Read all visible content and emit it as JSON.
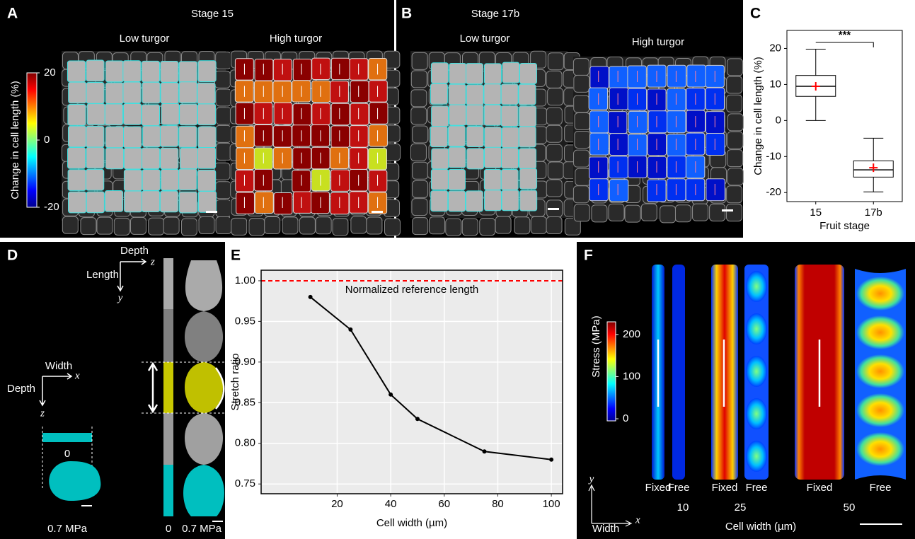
{
  "panels": {
    "A": {
      "label": "A",
      "title": "Stage 15",
      "subtitles": [
        "Low turgor",
        "High turgor"
      ],
      "colorbar": {
        "label": "Change in cell length (%)",
        "lim": [
          -20,
          20
        ],
        "ticks": [
          20,
          0,
          -20
        ]
      }
    },
    "B": {
      "label": "B",
      "title": "Stage 17b",
      "subtitles": [
        "Low turgor",
        "High turgor"
      ]
    },
    "C": {
      "label": "C"
    },
    "D": {
      "label": "D",
      "axes_top": [
        "Depth",
        "z",
        "Length",
        "y"
      ],
      "axes_left": [
        "Width",
        "x",
        "Depth",
        "z"
      ],
      "pressure_labels": [
        "0",
        "0.7 MPa",
        "0",
        "0.7 MPa"
      ]
    },
    "E": {
      "label": "E"
    },
    "F": {
      "label": "F",
      "colorbar": {
        "label": "Stress (MPa)",
        "lim": [
          -5,
          230
        ],
        "ticks": [
          200,
          100,
          0
        ]
      },
      "strip_labels": [
        "Fixed",
        "Free",
        "Fixed",
        "Free",
        "Fixed",
        "Free"
      ],
      "widths": [
        10,
        25,
        50
      ],
      "xlabel": "Cell width (µm)",
      "axes": [
        "y",
        "x",
        "Width"
      ]
    }
  },
  "chart_data": [
    {
      "type": "box",
      "ylabel": "Change in cell length (%)",
      "xlabel": "Fruit stage",
      "categories": [
        "15",
        "17b"
      ],
      "boxes": [
        {
          "min": 0,
          "q1": 6.7,
          "median": 9.5,
          "q3": 12.5,
          "max": 19.8,
          "mean": 9.5
        },
        {
          "min": -19.8,
          "q1": -15.7,
          "median": -13.7,
          "q3": -11.2,
          "max": -4.9,
          "mean": -13.1
        }
      ],
      "ylim": [
        -22.5,
        25
      ],
      "yticks": [
        -20,
        -10,
        0,
        10,
        20
      ],
      "annotation": "***",
      "color": "#000000",
      "mean_color": "#ff0000"
    },
    {
      "type": "line",
      "xlabel": "Cell width (µm)",
      "ylabel": "Stretch ratio",
      "x": [
        10,
        25,
        40,
        50,
        75,
        100
      ],
      "values": [
        0.98,
        0.94,
        0.86,
        0.83,
        0.79,
        0.78
      ],
      "xlim": [
        -8.4,
        104.2
      ],
      "ylim": [
        0.738,
        1.013
      ],
      "xticks": [
        20,
        40,
        60,
        80,
        100
      ],
      "yticks": [
        0.75,
        {
          "value": 0.8,
          "label": "0.80"
        },
        0.85,
        {
          "value": 0.9,
          "label": "0.90"
        },
        0.95,
        {
          "value": 1,
          "label": "1.00"
        }
      ],
      "reference": 1,
      "reference_label": "Normalized reference length",
      "color": "#000000",
      "reference_color": "#ff0000",
      "grid": true
    }
  ]
}
